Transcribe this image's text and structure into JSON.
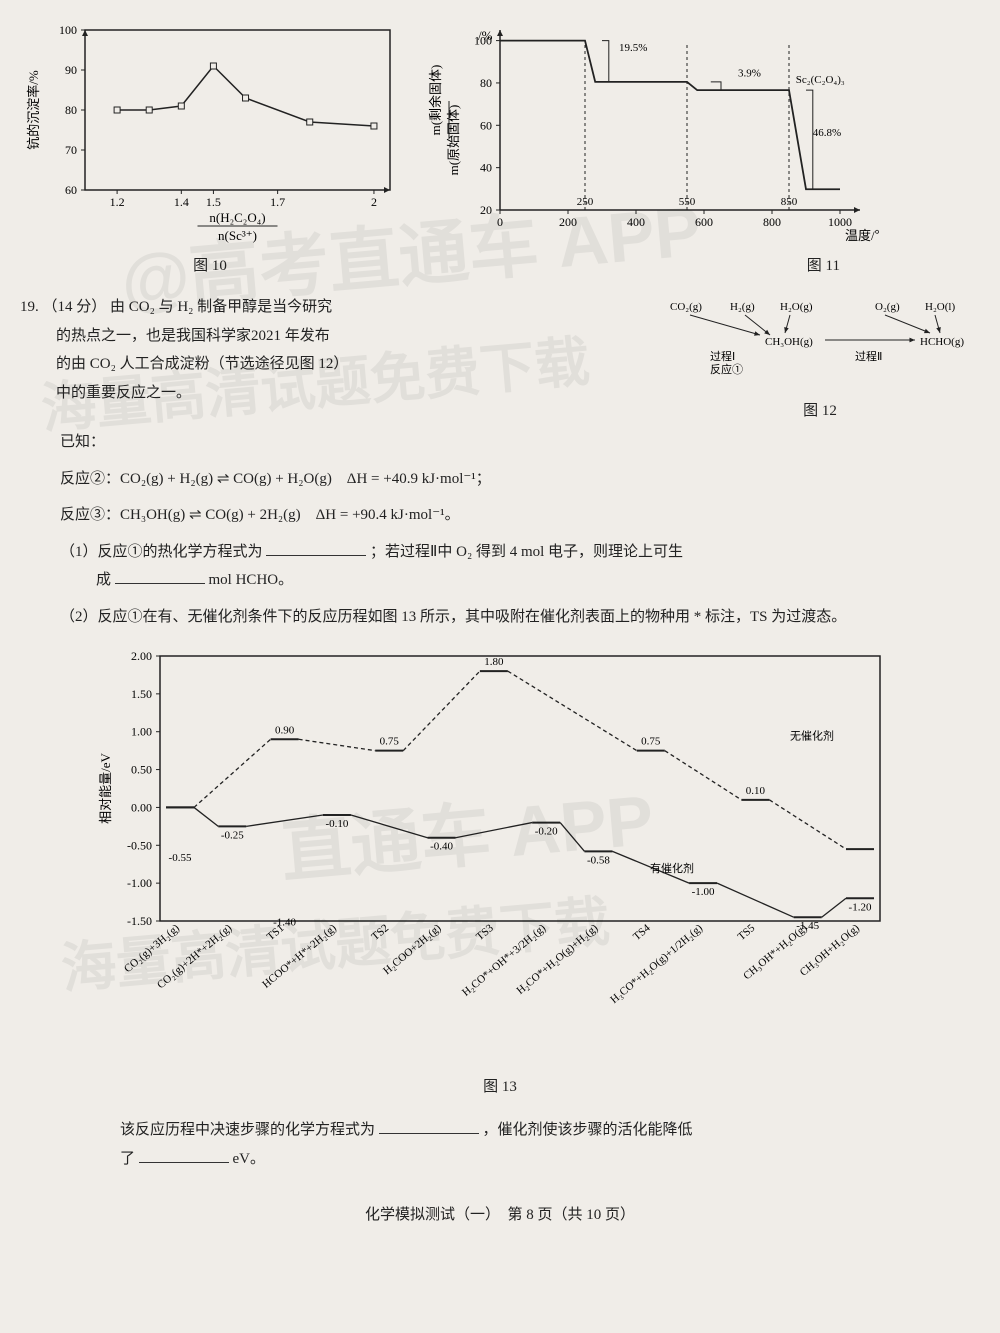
{
  "chart10": {
    "type": "line",
    "ylabel": "钪的沉淀率/%",
    "xlabel_top": "n(H₂C₂O₄)",
    "xlabel_bot": "n(Sc³⁺)",
    "caption": "图 10",
    "xlim": [
      1.1,
      2.05
    ],
    "ylim": [
      60,
      100
    ],
    "xticks": [
      1.2,
      1.4,
      1.5,
      1.7,
      2.0
    ],
    "yticks": [
      60,
      70,
      80,
      90,
      100
    ],
    "points_x": [
      1.2,
      1.3,
      1.4,
      1.5,
      1.6,
      1.8,
      2.0
    ],
    "points_y": [
      80,
      80,
      81,
      91,
      83,
      77,
      76
    ],
    "line_color": "#222222",
    "marker": "square",
    "background": "#f0ede8"
  },
  "chart11": {
    "type": "line",
    "ylabel_top": "m(剩余固体)",
    "ylabel_bot": "m(原始固体)",
    "ylabel_unit": "/%",
    "xlabel": "温度/℃",
    "caption": "图 11",
    "xlim": [
      0,
      1000
    ],
    "ylim": [
      20,
      105
    ],
    "xticks": [
      0,
      200,
      400,
      600,
      800,
      1000
    ],
    "yticks": [
      20,
      40,
      60,
      80,
      100
    ],
    "anno_dash_x": [
      250,
      550,
      850
    ],
    "anno_pct": [
      "19.5%",
      "3.9%",
      "46.8%"
    ],
    "anno_formula": "Sc₂(C₂O₄)₃",
    "points_x": [
      0,
      200,
      250,
      280,
      500,
      550,
      580,
      800,
      850,
      900,
      1000
    ],
    "points_y": [
      100,
      100,
      100,
      80.5,
      80.5,
      80.5,
      76.6,
      76.6,
      76.6,
      29.8,
      29.8
    ],
    "line_color": "#222222"
  },
  "q19": {
    "num": "19.",
    "points": "（14 分）",
    "intro_l1": "由 CO₂ 与 H₂ 制备甲醇是当今研究",
    "intro_l2": "的热点之一，也是我国科学家2021 年发布",
    "intro_l3": "的由 CO₂ 人工合成淀粉（节选途径见图 12）",
    "intro_l4": "中的重要反应之一。",
    "known": "已知：",
    "rxn2": "反应②：CO₂(g) + H₂(g) ⇌ CO(g) + H₂O(g)　ΔH = +40.9 kJ·mol⁻¹；",
    "rxn3": "反应③：CH₃OH(g) ⇌ CO(g) + 2H₂(g)　ΔH = +90.4 kJ·mol⁻¹。",
    "part1_a": "（1）反应①的热化学方程式为",
    "part1_b": "；若过程Ⅱ中 O₂ 得到 4 mol 电子，则理论上可生",
    "part1_c": "成",
    "part1_d": " mol HCHO。",
    "part2": "（2）反应①在有、无催化剂条件下的反应历程如图 13 所示，其中吸附在催化剂表面上的物种用 * 标注，TS 为过渡态。",
    "q_bottom_a": "该反应历程中决速步骤的化学方程式为",
    "q_bottom_b": "，催化剂使该步骤的活化能降低",
    "q_bottom_c": "了",
    "q_bottom_d": " eV。"
  },
  "fig12": {
    "caption": "图 12",
    "species": [
      "CO₂(g)",
      "H₂(g)",
      "H₂O(g)",
      "CH₃OH(g)",
      "O₂(g)",
      "H₂O(l)",
      "HCHO(g)"
    ],
    "proc1": "过程Ⅰ",
    "rxn1": "反应①",
    "proc2": "过程Ⅱ"
  },
  "chart13": {
    "type": "line",
    "ylabel": "相对能量/eV",
    "caption": "图 13",
    "xlim": [
      0,
      13
    ],
    "ylim": [
      -1.5,
      2.0
    ],
    "yticks": [
      -1.5,
      -1.0,
      -0.5,
      0.0,
      0.5,
      1.0,
      1.5,
      2.0
    ],
    "xlabels": [
      "CO₂(g)+3H₂(g)",
      "CO₂(g)+2H*+2H₂(g)",
      "TS1",
      "HCOO*+H*+2H₂(g)",
      "TS2",
      "H₂COO+2H₂(g)",
      "TS3",
      "H₂CO*+OH*+3/2H₂(g)",
      "H₂CO*+H₂O(g)+H₂(g)",
      "TS4",
      "H₃CO*+H₂O(g)+1/2H₂(g)",
      "TS5",
      "CH₃OH*+H₂O(g)",
      "CH₃OH+H₂O(g)"
    ],
    "nocat": {
      "label": "无催化剂",
      "values": [
        0.0,
        null,
        0.9,
        null,
        0.75,
        null,
        1.8,
        null,
        null,
        0.75,
        null,
        0.1,
        null,
        -0.55
      ],
      "color": "#222222",
      "dash": "4,3"
    },
    "cat": {
      "label": "有催化剂",
      "values": [
        0.0,
        -0.25,
        null,
        -0.1,
        null,
        -0.4,
        null,
        -0.2,
        -0.58,
        null,
        -1.0,
        null,
        -1.45,
        -1.2
      ],
      "color": "#222222",
      "dash": "none"
    },
    "anno_nocat": [
      [
        2,
        0.9,
        "0.90"
      ],
      [
        4,
        0.75,
        "0.75"
      ],
      [
        6,
        1.8,
        "1.80"
      ],
      [
        9,
        0.75,
        "0.75"
      ],
      [
        11,
        0.1,
        "0.10"
      ]
    ],
    "anno_cat": [
      [
        1,
        -0.25,
        "-0.25"
      ],
      [
        3,
        -0.1,
        "-0.10"
      ],
      [
        5,
        -0.4,
        "-0.40"
      ],
      [
        7,
        -0.2,
        "-0.20"
      ],
      [
        8,
        -0.58,
        "-0.58"
      ],
      [
        10,
        -1.0,
        "-1.00"
      ],
      [
        12,
        -1.45,
        "-1.45"
      ],
      [
        13,
        -1.2,
        "-1.20"
      ],
      [
        0,
        -0.55,
        "-0.55"
      ],
      [
        2,
        -1.4,
        "-1.40"
      ]
    ]
  },
  "footer": "化学模拟测试（一）　第 8 页（共 10 页）",
  "colors": {
    "ink": "#222222",
    "bg": "#f0ede8",
    "wm": "rgba(0,0,0,0.06)"
  }
}
